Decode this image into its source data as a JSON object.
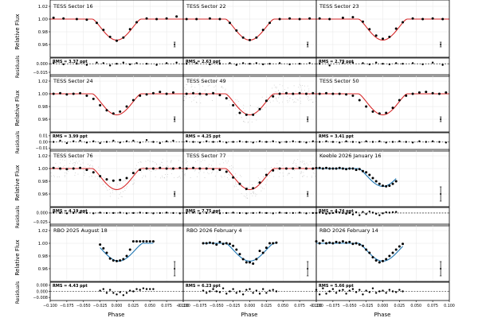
{
  "figure": {
    "x_axis_label": "Phase",
    "y_axis_label_flux": "Relative Flux",
    "y_axis_label_resid": "Residuals",
    "x_ticks": [
      "−0.100",
      "−0.075",
      "−0.050",
      "−0.025",
      "0.000",
      "0.025",
      "0.050",
      "0.075",
      "0.100"
    ]
  },
  "chart_data": {
    "type": "scatter",
    "xlim": [
      -0.1,
      0.1
    ],
    "flux_ylim": [
      0.94,
      1.03
    ],
    "colors": {
      "tess_model": "#d62728",
      "ground_model": "#1f77b4",
      "points": "#000000",
      "raw": "#888888"
    },
    "panels": [
      {
        "title": "TESS Sector 16",
        "model": "tess",
        "rms": "RMS = 3.37 ppt",
        "flux_ticks": [
          "1.02",
          "1.00",
          "0.98",
          "0.96"
        ],
        "resid_ticks": [
          "0.000",
          "−0.015"
        ],
        "resid_ylim": [
          -0.022,
          0.01
        ],
        "raw_scatter": false,
        "x": [
          -0.095,
          -0.08,
          -0.06,
          -0.045,
          -0.03,
          -0.02,
          -0.01,
          0.0,
          0.01,
          0.02,
          0.03,
          0.045,
          0.06,
          0.075,
          0.09
        ],
        "flux": [
          1.002,
          1.001,
          1.0,
          0.999,
          0.994,
          0.983,
          0.972,
          0.966,
          0.971,
          0.984,
          0.995,
          1.001,
          1.0,
          1.001,
          1.004
        ],
        "resid": [
          0.001,
          -0.001,
          0.0,
          -0.002,
          0.002,
          0.001,
          -0.003,
          0.0,
          0.002,
          -0.001,
          0.001,
          0.0,
          -0.002,
          0.001,
          0.002
        ]
      },
      {
        "title": "TESS Sector 22",
        "model": "tess",
        "rms": "RMS = 2.63 ppt",
        "flux_ticks": [],
        "resid_ticks": [],
        "resid_ylim": [
          -0.022,
          0.01
        ],
        "raw_scatter": false,
        "x": [
          -0.095,
          -0.08,
          -0.06,
          -0.045,
          -0.03,
          -0.02,
          -0.01,
          0.0,
          0.01,
          0.02,
          0.03,
          0.045,
          0.06,
          0.075,
          0.09
        ],
        "flux": [
          1.0,
          1.0,
          1.001,
          1.0,
          0.994,
          0.982,
          0.971,
          0.967,
          0.971,
          0.983,
          0.994,
          1.0,
          1.001,
          1.0,
          1.001
        ],
        "resid": [
          0.0,
          0.001,
          -0.001,
          0.0,
          0.001,
          -0.002,
          0.001,
          0.0,
          0.001,
          -0.001,
          0.0,
          0.001,
          -0.001,
          0.0,
          0.001
        ]
      },
      {
        "title": "TESS Sector 23",
        "model": "tess",
        "rms": "RMS = 2.79 ppt",
        "flux_ticks": [],
        "resid_ticks": [],
        "resid_ylim": [
          -0.022,
          0.01
        ],
        "raw_scatter": false,
        "x": [
          -0.095,
          -0.08,
          -0.06,
          -0.045,
          -0.03,
          -0.02,
          -0.01,
          0.0,
          0.01,
          0.02,
          0.03,
          0.045,
          0.06,
          0.075,
          0.09
        ],
        "flux": [
          1.001,
          1.0,
          1.002,
          1.003,
          0.996,
          0.984,
          0.974,
          0.969,
          0.972,
          0.985,
          0.995,
          1.001,
          1.0,
          1.001,
          1.0
        ],
        "resid": [
          0.0,
          -0.003,
          0.001,
          0.002,
          0.001,
          -0.001,
          0.002,
          0.0,
          -0.001,
          0.001,
          0.0,
          0.001,
          -0.001,
          0.002,
          -0.002
        ]
      },
      {
        "title": "TESS Sector 24",
        "model": "tess",
        "rms": "RMS = 3.99 ppt",
        "flux_ticks": [
          "1.02",
          "1.00",
          "0.98",
          "0.96"
        ],
        "resid_ticks": [
          "0.01",
          "0.00",
          "−0.01"
        ],
        "resid_ylim": [
          -0.015,
          0.015
        ],
        "raw_scatter": false,
        "x": [
          -0.095,
          -0.085,
          -0.075,
          -0.065,
          -0.055,
          -0.045,
          -0.035,
          -0.025,
          -0.015,
          -0.005,
          0.005,
          0.015,
          0.025,
          0.035,
          0.045,
          0.055,
          0.065,
          0.075,
          0.085
        ],
        "flux": [
          1.0,
          1.001,
          0.999,
          1.0,
          1.001,
          0.997,
          0.992,
          0.982,
          0.974,
          0.969,
          0.972,
          0.98,
          0.99,
          0.997,
          0.999,
          1.001,
          1.003,
          1.0,
          1.002
        ],
        "resid": [
          0.0,
          0.002,
          -0.002,
          0.001,
          0.002,
          -0.001,
          0.001,
          -0.002,
          0.0,
          0.002,
          -0.001,
          0.001,
          0.002,
          -0.001,
          0.003,
          0.0,
          -0.002,
          0.001,
          0.002
        ]
      },
      {
        "title": "TESS Sector 49",
        "model": "tess",
        "rms": "RMS = 4.25 ppt",
        "flux_ticks": [],
        "resid_ticks": [],
        "resid_ylim": [
          -0.015,
          0.015
        ],
        "raw_scatter": true,
        "x": [
          -0.095,
          -0.085,
          -0.075,
          -0.065,
          -0.055,
          -0.045,
          -0.035,
          -0.025,
          -0.015,
          -0.005,
          0.005,
          0.015,
          0.025,
          0.035,
          0.045,
          0.055,
          0.065,
          0.075,
          0.085,
          0.095
        ],
        "flux": [
          1.0,
          1.001,
          1.0,
          0.999,
          1.001,
          0.998,
          0.993,
          0.982,
          0.97,
          0.967,
          0.967,
          0.976,
          0.989,
          0.996,
          1.0,
          1.001,
          1.0,
          1.001,
          1.0,
          1.001
        ],
        "resid": [
          0.001,
          0.0,
          -0.001,
          0.001,
          0.0,
          0.001,
          -0.001,
          0.0,
          0.001,
          0.0,
          -0.001,
          0.001,
          0.0,
          0.001,
          -0.001,
          0.0,
          0.001,
          0.0,
          -0.001,
          0.001
        ]
      },
      {
        "title": "TESS Sector 50",
        "model": "tess",
        "rms": "RMS = 3.41 ppt",
        "flux_ticks": [],
        "resid_ticks": [],
        "resid_ylim": [
          -0.015,
          0.015
        ],
        "raw_scatter": false,
        "x": [
          -0.095,
          -0.085,
          -0.075,
          -0.065,
          -0.055,
          -0.045,
          -0.035,
          -0.025,
          -0.015,
          -0.005,
          0.005,
          0.015,
          0.025,
          0.035,
          0.045,
          0.055,
          0.065,
          0.075,
          0.085,
          0.095
        ],
        "flux": [
          1.0,
          1.001,
          1.0,
          1.0,
          0.999,
          0.997,
          0.99,
          0.98,
          0.972,
          0.969,
          0.97,
          0.978,
          0.99,
          0.997,
          1.0,
          1.002,
          1.003,
          1.001,
          1.0,
          1.002
        ],
        "resid": [
          0.0,
          0.001,
          0.0,
          -0.001,
          0.001,
          0.0,
          -0.001,
          0.001,
          0.0,
          0.001,
          -0.001,
          0.0,
          0.001,
          0.0,
          -0.001,
          0.001,
          0.0,
          0.001,
          0.0,
          -0.001
        ]
      },
      {
        "title": "TESS Sector 76",
        "model": "tess",
        "rms": "RMS = 4.19 ppt",
        "flux_ticks": [
          "1.02",
          "1.00",
          "0.98",
          "0.96"
        ],
        "resid_ticks": [
          "0.000",
          "−0.025"
        ],
        "resid_ylim": [
          -0.035,
          0.015
        ],
        "raw_scatter": true,
        "x": [
          -0.095,
          -0.085,
          -0.075,
          -0.065,
          -0.055,
          -0.045,
          -0.035,
          -0.025,
          -0.015,
          -0.005,
          0.005,
          0.015,
          0.025,
          0.035,
          0.045,
          0.055,
          0.065,
          0.075,
          0.085,
          0.095
        ],
        "flux": [
          1.001,
          1.0,
          0.999,
          1.0,
          1.001,
          0.998,
          0.994,
          0.988,
          0.983,
          0.981,
          0.982,
          0.985,
          0.993,
          0.998,
          1.0,
          1.0,
          1.001,
          1.0,
          1.0,
          1.001
        ],
        "resid": [
          0.001,
          0.0,
          -0.001,
          0.0,
          0.001,
          0.0,
          -0.001,
          0.001,
          0.0,
          0.0,
          0.001,
          -0.001,
          0.0,
          0.001,
          0.0,
          -0.001,
          0.0,
          0.001,
          0.0,
          -0.001
        ]
      },
      {
        "title": "TESS Sector 77",
        "model": "tess",
        "rms": "RMS = 7.75 ppt",
        "flux_ticks": [],
        "resid_ticks": [],
        "resid_ylim": [
          -0.035,
          0.015
        ],
        "raw_scatter": true,
        "x": [
          -0.095,
          -0.085,
          -0.075,
          -0.065,
          -0.055,
          -0.045,
          -0.035,
          -0.025,
          -0.015,
          -0.005,
          0.005,
          0.015,
          0.025,
          0.035,
          0.045,
          0.055,
          0.065,
          0.075,
          0.085,
          0.095
        ],
        "flux": [
          1.0,
          1.001,
          1.0,
          1.0,
          0.999,
          0.998,
          0.995,
          0.986,
          0.976,
          0.968,
          0.969,
          0.978,
          0.99,
          0.997,
          1.0,
          1.0,
          1.0,
          1.001,
          1.0,
          1.0
        ],
        "resid": [
          0.0,
          0.001,
          -0.001,
          0.0,
          0.001,
          -0.001,
          0.0,
          0.001,
          0.0,
          -0.001,
          0.0,
          0.001,
          0.0,
          -0.001,
          0.001,
          0.0,
          0.0,
          0.001,
          -0.001,
          0.0
        ]
      },
      {
        "title": "Keeble 2026 January 16",
        "model": "ground",
        "rms": "RMS = 4.74 ppt",
        "flux_ticks": [],
        "resid_ticks": [],
        "resid_ylim": [
          -0.035,
          0.015
        ],
        "raw_scatter": false,
        "x": [
          -0.1,
          -0.095,
          -0.09,
          -0.085,
          -0.08,
          -0.075,
          -0.07,
          -0.065,
          -0.06,
          -0.055,
          -0.05,
          -0.045,
          -0.04,
          -0.035,
          -0.03,
          -0.025,
          -0.02,
          -0.015,
          -0.01,
          -0.005,
          0.0,
          0.005,
          0.01,
          0.015,
          0.02
        ],
        "flux": [
          1.001,
          1.001,
          1.0,
          1.001,
          1.0,
          1.0,
          1.0,
          1.001,
          1.0,
          0.999,
          1.0,
          1.0,
          0.998,
          0.999,
          0.996,
          0.994,
          0.99,
          0.985,
          0.98,
          0.976,
          0.973,
          0.972,
          0.973,
          0.976,
          0.98
        ],
        "resid": [
          0.0,
          0.001,
          0.0,
          -0.002,
          -0.001,
          0.0,
          0.002,
          0.001,
          0.0,
          -0.002,
          0.0,
          -0.004,
          0.002,
          -0.006,
          0.003,
          -0.003,
          0.004,
          0.001,
          -0.002,
          -0.006,
          -0.001,
          0.002,
          0.001,
          0.002,
          0.003
        ]
      },
      {
        "title": "RBO 2025 August 18",
        "model": "ground",
        "rms": "RMS = 4.43 ppt",
        "flux_ticks": [
          "1.02",
          "1.00",
          "0.98",
          "0.96"
        ],
        "resid_ticks": [
          "0.008",
          "0.000",
          "−0.008"
        ],
        "resid_ylim": [
          -0.012,
          0.012
        ],
        "raw_scatter": false,
        "x": [
          -0.025,
          -0.02,
          -0.015,
          -0.01,
          -0.005,
          0.0,
          0.005,
          0.01,
          0.015,
          0.02,
          0.025,
          0.03,
          0.035,
          0.04,
          0.045,
          0.05,
          0.055
        ],
        "flux": [
          0.998,
          0.992,
          0.985,
          0.976,
          0.973,
          0.972,
          0.973,
          0.975,
          0.98,
          0.99,
          1.003,
          1.003,
          1.003,
          1.003,
          1.003,
          1.003,
          1.003
        ],
        "resid": [
          0.001,
          0.003,
          -0.002,
          0.002,
          -0.002,
          -0.004,
          -0.001,
          -0.005,
          -0.002,
          0.001,
          0.0,
          0.003,
          0.002,
          0.004,
          0.003,
          0.003,
          0.003
        ]
      },
      {
        "title": "RBO 2026 February 4",
        "model": "ground",
        "rms": "RMS = 6.23 ppt",
        "flux_ticks": [],
        "resid_ticks": [],
        "resid_ylim": [
          -0.012,
          0.012
        ],
        "raw_scatter": false,
        "x": [
          -0.07,
          -0.065,
          -0.06,
          -0.055,
          -0.05,
          -0.045,
          -0.04,
          -0.035,
          -0.03,
          -0.025,
          -0.02,
          -0.015,
          -0.01,
          -0.005,
          0.0,
          0.005,
          0.01,
          0.015,
          0.02,
          0.025,
          0.03,
          0.035,
          0.04
        ],
        "flux": [
          1.0,
          1.0,
          1.001,
          1.0,
          0.998,
          1.002,
          0.999,
          1.0,
          0.999,
          0.996,
          0.99,
          0.983,
          0.975,
          0.97,
          0.97,
          0.968,
          0.975,
          0.988,
          0.985,
          0.993,
          1.0,
          1.0,
          1.001
        ],
        "resid": [
          0.001,
          -0.002,
          0.0,
          0.003,
          0.0,
          -0.001,
          0.004,
          -0.003,
          0.0,
          0.003,
          -0.002,
          0.0,
          -0.004,
          0.002,
          0.003,
          -0.002,
          0.001,
          -0.003,
          0.003,
          -0.002,
          0.001,
          0.002,
          0.0
        ]
      },
      {
        "title": "RBO 2026 February 14",
        "model": "ground",
        "rms": "RMS = 5.66 ppt",
        "flux_ticks": [],
        "resid_ticks": [],
        "resid_ylim": [
          -0.012,
          0.012
        ],
        "raw_scatter": false,
        "x": [
          -0.1,
          -0.095,
          -0.09,
          -0.085,
          -0.08,
          -0.075,
          -0.07,
          -0.065,
          -0.06,
          -0.055,
          -0.05,
          -0.045,
          -0.04,
          -0.035,
          -0.03,
          -0.025,
          -0.02,
          -0.015,
          -0.01,
          -0.005,
          0.0,
          0.005,
          0.01,
          0.015,
          0.02,
          0.025,
          0.03
        ],
        "flux": [
          1.003,
          1.0,
          1.004,
          1.0,
          1.001,
          1.0,
          1.002,
          1.001,
          1.003,
          1.001,
          1.002,
          0.999,
          1.0,
          0.998,
          0.996,
          0.99,
          0.985,
          0.978,
          0.973,
          0.97,
          0.972,
          0.975,
          0.98,
          0.985,
          0.99,
          0.995,
          0.999
        ],
        "resid": [
          0.002,
          -0.004,
          0.004,
          -0.003,
          0.0,
          0.003,
          -0.002,
          0.001,
          0.002,
          -0.003,
          0.001,
          0.003,
          -0.001,
          0.002,
          -0.004,
          0.001,
          -0.001,
          0.004,
          -0.002,
          0.0,
          0.001,
          -0.002,
          0.002,
          0.0,
          -0.001,
          0.002,
          0.0
        ]
      }
    ]
  }
}
